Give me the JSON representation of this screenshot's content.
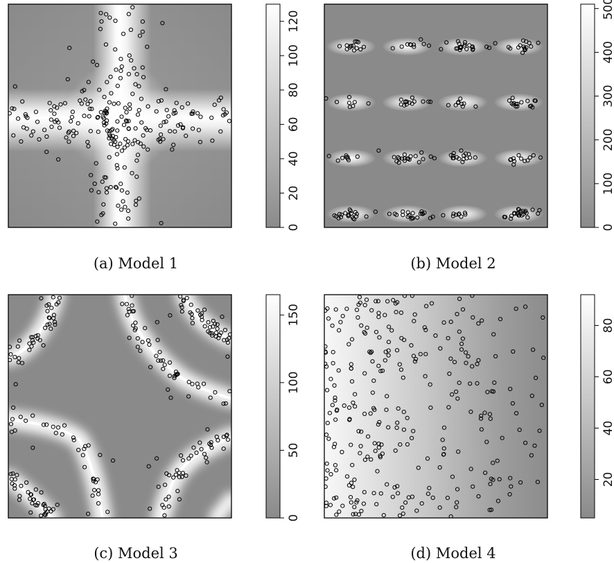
{
  "chart_data": [
    {
      "type": "heatmap",
      "caption": "(a) Model 1",
      "pattern": "cross",
      "colorbar": {
        "min": 0,
        "max": 130,
        "ticks": [
          "0",
          "20",
          "40",
          "60",
          "80",
          "100",
          "120"
        ]
      },
      "n_points": 260
    },
    {
      "type": "heatmap",
      "caption": "(b) Model 2",
      "pattern": "bands",
      "colorbar": {
        "min": 0,
        "max": 510,
        "ticks": [
          "0",
          "100",
          "200",
          "300",
          "400",
          "500"
        ]
      },
      "n_points": 240
    },
    {
      "type": "heatmap",
      "caption": "(c) Model 3",
      "pattern": "curves",
      "colorbar": {
        "min": 0,
        "max": 165,
        "ticks": [
          "0",
          "50",
          "100",
          "150"
        ]
      },
      "n_points": 260
    },
    {
      "type": "heatmap",
      "caption": "(d) Model 4",
      "pattern": "gradient",
      "colorbar": {
        "min": 5,
        "max": 92,
        "ticks": [
          "20",
          "40",
          "60",
          "80"
        ]
      },
      "n_points": 300
    }
  ],
  "colors": {
    "low": "#8a8a8a",
    "high": "#ffffff",
    "point": "#000000"
  }
}
